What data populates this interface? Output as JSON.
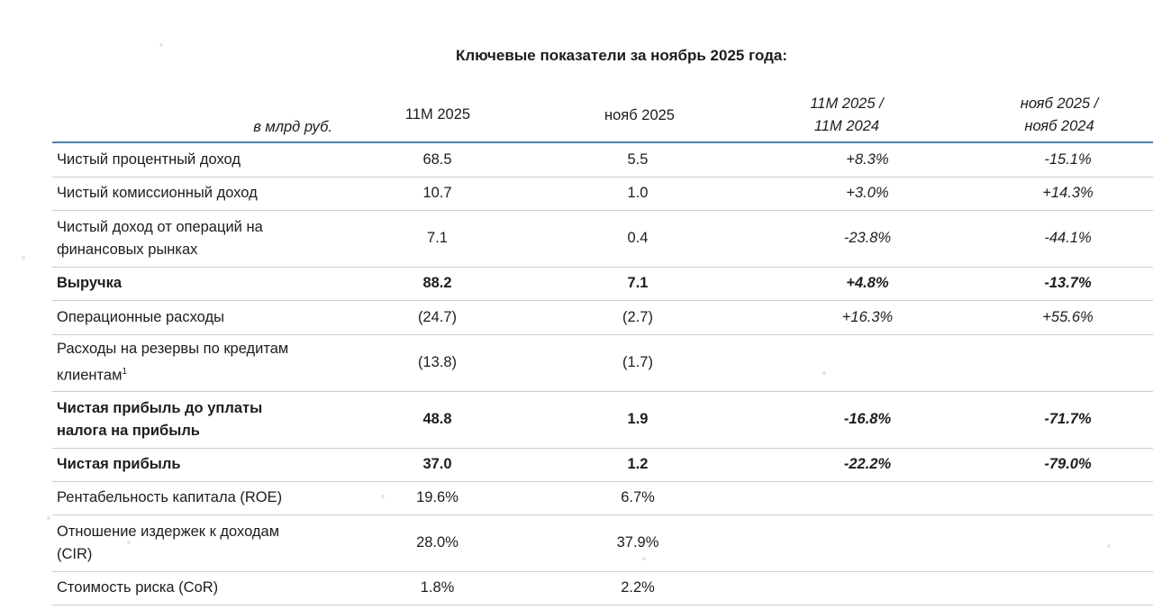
{
  "title": "Ключевые показатели за ноябрь 2025 года:",
  "header": {
    "unit": "в млрд руб.",
    "col1": "11М 2025",
    "col2": "нояб 2025",
    "col3_line1": "11М 2025 /",
    "col3_line2": "11М 2024",
    "col4_line1": "нояб 2025 /",
    "col4_line2": "нояб 2024"
  },
  "rows": [
    {
      "label": "Чистый процентный доход",
      "v1": "68.5",
      "v2": "5.5",
      "c1": "+8.3%",
      "c2": "-15.1%",
      "bold": false
    },
    {
      "label": "Чистый комиссионный доход",
      "v1": "10.7",
      "v2": "1.0",
      "c1": "+3.0%",
      "c2": "+14.3%",
      "bold": false
    },
    {
      "label_line1": "Чистый доход от операций на",
      "label_line2": "финансовых рынках",
      "v1": "7.1",
      "v2": "0.4",
      "c1": "-23.8%",
      "c2": "-44.1%",
      "bold": false
    },
    {
      "label": "Выручка",
      "v1": "88.2",
      "v2": "7.1",
      "c1": "+4.8%",
      "c2": "-13.7%",
      "bold": true
    },
    {
      "label": "Операционные расходы",
      "v1": "(24.7)",
      "v2": "(2.7)",
      "c1": "+16.3%",
      "c2": "+55.6%",
      "bold": false
    },
    {
      "label_line1": "Расходы на резервы по кредитам",
      "label_line2": "клиентам",
      "footnote": "1",
      "v1": "(13.8)",
      "v2": "(1.7)",
      "c1": "",
      "c2": "",
      "bold": false
    },
    {
      "label_line1": "Чистая прибыль до уплаты",
      "label_line2": "налога на прибыль",
      "v1": "48.8",
      "v2": "1.9",
      "c1": "-16.8%",
      "c2": "-71.7%",
      "bold": true
    },
    {
      "label": "Чистая прибыль",
      "v1": "37.0",
      "v2": "1.2",
      "c1": "-22.2%",
      "c2": "-79.0%",
      "bold": true
    },
    {
      "label": "Рентабельность капитала (ROE)",
      "v1": "19.6%",
      "v2": "6.7%",
      "c1": "",
      "c2": "",
      "bold": false
    },
    {
      "label_line1": "Отношение издержек к доходам",
      "label_line2": "(CIR)",
      "v1": "28.0%",
      "v2": "37.9%",
      "c1": "",
      "c2": "",
      "bold": false
    },
    {
      "label": "Стоимость риска (CoR)",
      "v1": "1.8%",
      "v2": "2.2%",
      "c1": "",
      "c2": "",
      "bold": false
    }
  ]
}
